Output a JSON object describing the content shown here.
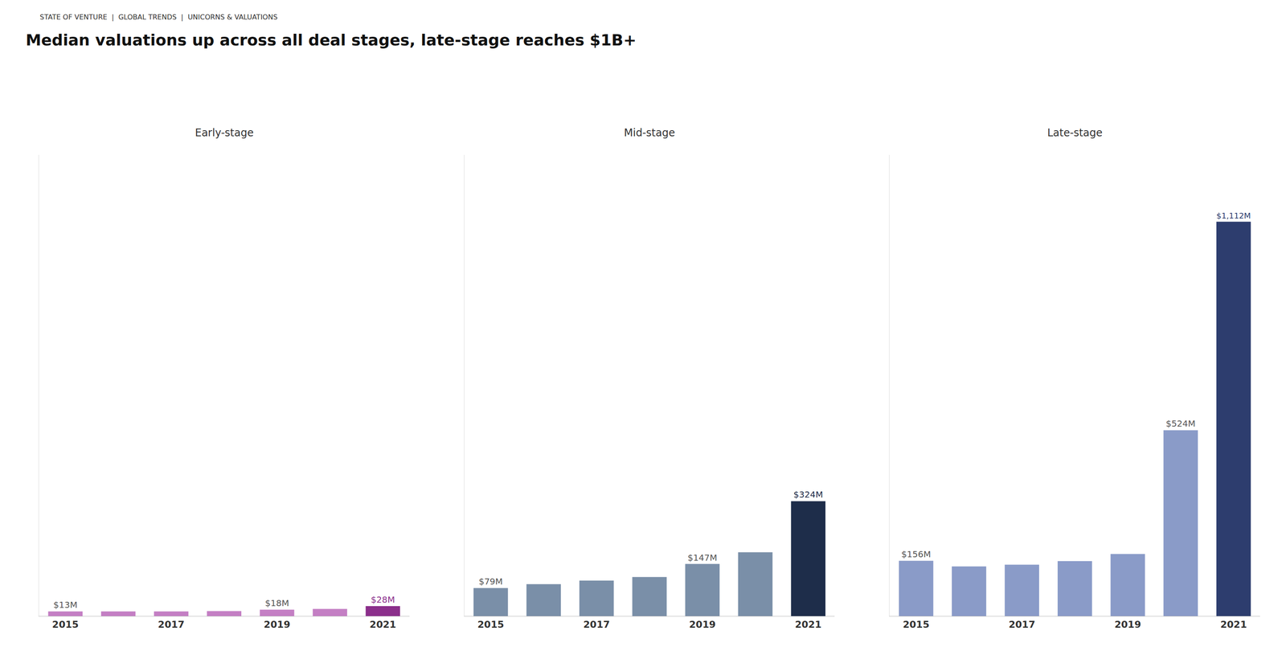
{
  "subtitle": "STATE OF VENTURE  |  GLOBAL TRENDS  |  UNICORNS & VALUATIONS",
  "title": "Median valuations up across all deal stages, late-stage reaches $1B+",
  "chart_data": [
    {
      "type": "bar",
      "title": "Early-stage",
      "categories": [
        "2015",
        null,
        "2017",
        null,
        "2019",
        null,
        "2021"
      ],
      "values": [
        13,
        13,
        13,
        14,
        18,
        20,
        28
      ],
      "value_labels": [
        "$13M",
        null,
        null,
        null,
        "$18M",
        null,
        "$28M"
      ],
      "colors": [
        "#c47fc4",
        "#c47fc4",
        "#c47fc4",
        "#c47fc4",
        "#c47fc4",
        "#c47fc4",
        "#8b2f8b"
      ],
      "ylim": [
        0,
        1300
      ],
      "grid": false,
      "data_labels": true,
      "tick_labels": "x"
    },
    {
      "type": "bar",
      "title": "Mid-stage",
      "categories": [
        "2015",
        null,
        "2017",
        null,
        "2019",
        null,
        "2021"
      ],
      "values": [
        79,
        90,
        100,
        110,
        147,
        180,
        324
      ],
      "value_labels": [
        "$79M",
        null,
        null,
        null,
        "$147M",
        null,
        "$324M"
      ],
      "colors": [
        "#7a8fa8",
        "#7a8fa8",
        "#7a8fa8",
        "#7a8fa8",
        "#7a8fa8",
        "#7a8fa8",
        "#1e2d4a"
      ],
      "ylim": [
        0,
        1300
      ],
      "grid": false,
      "data_labels": true,
      "tick_labels": "x"
    },
    {
      "type": "bar",
      "title": "Late-stage",
      "categories": [
        "2015",
        null,
        "2017",
        null,
        "2019",
        null,
        "2021"
      ],
      "values": [
        156,
        140,
        145,
        155,
        175,
        524,
        1112
      ],
      "value_labels": [
        "$156M",
        null,
        null,
        null,
        null,
        "$524M",
        "$1,112M"
      ],
      "colors": [
        "#8a9bc8",
        "#8a9bc8",
        "#8a9bc8",
        "#8a9bc8",
        "#8a9bc8",
        "#8a9bc8",
        "#2d3d6e"
      ],
      "ylim": [
        0,
        1300
      ],
      "grid": false,
      "data_labels": true,
      "tick_labels": "x"
    }
  ]
}
